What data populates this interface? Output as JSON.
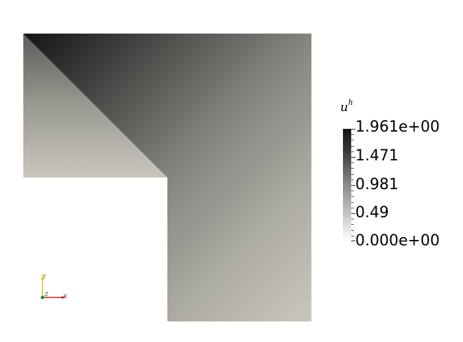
{
  "colorbar": {
    "title_base": "u",
    "title_sup": "h",
    "labels": [
      "1.961e+00",
      "1.471",
      "0.981",
      "0.49",
      "0.000e+00"
    ]
  },
  "axes": {
    "x": "X",
    "y": "Y",
    "z": "Z"
  },
  "colors": {
    "background": "#ffffff",
    "field_dark": "#141414",
    "field_light": "#c9c6be"
  }
}
